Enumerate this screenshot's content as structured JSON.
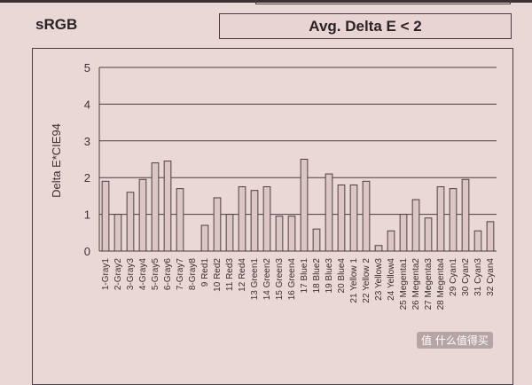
{
  "header": {
    "profile_label": "sRGB",
    "summary_label": "Avg. Delta E < 2"
  },
  "watermark": "值 什么值得买",
  "chart_data": {
    "type": "bar",
    "ylabel": "Delta E*CIE94",
    "ylim": [
      0,
      5
    ],
    "yticks": [
      0,
      1,
      2,
      3,
      4,
      5
    ],
    "grid": true,
    "categories": [
      "1-Gray1",
      "2-Gray2",
      "3-Gray3",
      "4-Gray4",
      "5-Gray5",
      "6-Gray6",
      "7-Gray7",
      "8-Gray8",
      "9 Red1",
      "10 Red2",
      "11 Red3",
      "12 Red4",
      "13 Green1",
      "14 Green2",
      "15 Green3",
      "16 Green4",
      "17 Blue1",
      "18 Blue2",
      "19 Blue3",
      "20 Blue4",
      "21 Yellow 1",
      "22 Yellow 2",
      "23 Yellow3",
      "24 Yellow4",
      "25 Megenta1",
      "26 Megenta2",
      "27 Megenta3",
      "28 Megenta4",
      "29 Cyan1",
      "30 Cyan2",
      "31 Cyan3",
      "32 Cyan4"
    ],
    "values": [
      1.9,
      1.0,
      1.6,
      1.95,
      2.4,
      2.45,
      1.7,
      0.0,
      0.7,
      1.45,
      1.0,
      1.75,
      1.65,
      1.75,
      0.95,
      0.95,
      2.5,
      0.6,
      2.1,
      1.8,
      1.8,
      1.9,
      0.15,
      0.55,
      1.0,
      1.4,
      0.9,
      1.75,
      1.7,
      1.95,
      0.55,
      0.8
    ]
  },
  "colors": {
    "background": "#e9d8d6",
    "bar_fill": "#dcc7c6",
    "bar_stroke": "#4a3e42",
    "grid": "#4a3e42"
  }
}
